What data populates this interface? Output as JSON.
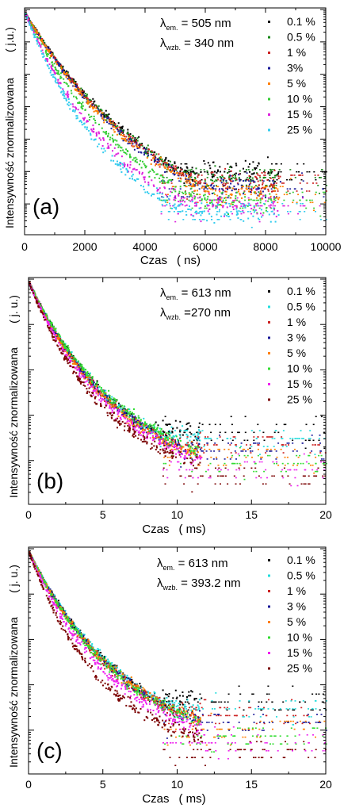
{
  "chart_data": [
    {
      "panel_label": "(a)",
      "type": "scatter",
      "xlabel": "Czas",
      "xunit": "( ns)",
      "ylabel": "Intensywność znormalizowana",
      "yunit": "( j.u.)",
      "xlim": [
        0,
        10000
      ],
      "xticks": [
        0,
        2000,
        4000,
        6000,
        8000,
        10000
      ],
      "yscale": "log",
      "annotation_em": {
        "symbol": "λ",
        "sub": "em.",
        "value": "= 505 nm"
      },
      "annotation_wzb": {
        "symbol": "λ",
        "sub": "wzb.",
        "value": "= 340 nm"
      },
      "legend_position": "top-right",
      "series": [
        {
          "name": "0.1 %",
          "color": "#000000",
          "tau": 1500
        },
        {
          "name": "0.5 %",
          "color": "#1a8a1a",
          "tau": 1480
        },
        {
          "name": "1 %",
          "color": "#cc2222",
          "tau": 1450
        },
        {
          "name": "3%",
          "color": "#1a1a99",
          "tau": 1420
        },
        {
          "name": "5 %",
          "color": "#ff7f00",
          "tau": 1400
        },
        {
          "name": "10 %",
          "color": "#33cc33",
          "tau": 1200
        },
        {
          "name": "15 %",
          "color": "#dd22dd",
          "tau": 1050
        },
        {
          "name": "25 %",
          "color": "#33ccee",
          "tau": 950
        }
      ]
    },
    {
      "panel_label": "(b)",
      "type": "scatter",
      "xlabel": "Czas",
      "xunit": "( ms)",
      "ylabel": "Intensywność znormalizowana",
      "yunit": "( j. u.)",
      "xlim": [
        0,
        20
      ],
      "xticks": [
        0,
        5,
        10,
        15,
        20
      ],
      "yscale": "log",
      "annotation_em": {
        "symbol": "λ",
        "sub": "em.",
        "value": "= 613 nm"
      },
      "annotation_wzb": {
        "symbol": "λ",
        "sub": "wzb.",
        "value": "=270 nm"
      },
      "legend_position": "top-right",
      "series": [
        {
          "name": "0.1 %",
          "color": "#000000",
          "tau": 1.9
        },
        {
          "name": "0.5 %",
          "color": "#22dddd",
          "tau": 1.9
        },
        {
          "name": "1 %",
          "color": "#cc2222",
          "tau": 1.85
        },
        {
          "name": "3 %",
          "color": "#1a1a99",
          "tau": 1.85
        },
        {
          "name": "5 %",
          "color": "#ff7f00",
          "tau": 1.8
        },
        {
          "name": "10 %",
          "color": "#33dd33",
          "tau": 1.95
        },
        {
          "name": "15 %",
          "color": "#ee22ee",
          "tau": 1.7
        },
        {
          "name": "25 %",
          "color": "#7a0000",
          "tau": 1.55
        }
      ]
    },
    {
      "panel_label": "(c)",
      "type": "scatter",
      "xlabel": "Czas",
      "xunit": "( ms)",
      "ylabel": "Intensywność znormalizowana",
      "yunit": "( j. u.)",
      "xlim": [
        0,
        20
      ],
      "xticks": [
        0,
        5,
        10,
        15,
        20
      ],
      "yscale": "log",
      "annotation_em": {
        "symbol": "λ",
        "sub": "em.",
        "value": "= 613 nm"
      },
      "annotation_wzb": {
        "symbol": "λ",
        "sub": "wzb.",
        "value": "= 393.2 nm"
      },
      "legend_position": "top-right",
      "series": [
        {
          "name": "0.1 %",
          "color": "#000000",
          "tau": 2.0
        },
        {
          "name": "0.5 %",
          "color": "#22dddd",
          "tau": 2.0
        },
        {
          "name": "1 %",
          "color": "#cc2222",
          "tau": 1.9
        },
        {
          "name": "3 %",
          "color": "#1a1a99",
          "tau": 1.95
        },
        {
          "name": "5 %",
          "color": "#ff7f00",
          "tau": 1.95
        },
        {
          "name": "10 %",
          "color": "#33dd33",
          "tau": 1.9
        },
        {
          "name": "15 %",
          "color": "#ee22ee",
          "tau": 1.7
        },
        {
          "name": "25 %",
          "color": "#7a0000",
          "tau": 1.45
        }
      ]
    }
  ]
}
